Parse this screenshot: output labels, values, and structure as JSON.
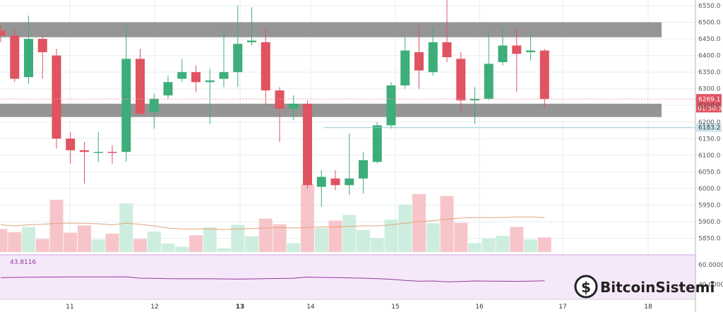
{
  "chart_data": {
    "type": "candlestick",
    "y_ticks": [
      5850,
      5900,
      5950,
      6000,
      6050,
      6100,
      6150,
      6200,
      6250,
      6300,
      6350,
      6400,
      6450,
      6500,
      6550
    ],
    "ylim": [
      5815,
      6575
    ],
    "x_ticks": [
      {
        "label": "11",
        "bold": false
      },
      {
        "label": "12",
        "bold": false
      },
      {
        "label": "13",
        "bold": true
      },
      {
        "label": "14",
        "bold": false
      },
      {
        "label": "15",
        "bold": false
      },
      {
        "label": "16",
        "bold": false
      },
      {
        "label": "17",
        "bold": false
      },
      {
        "label": "18",
        "bold": false
      }
    ],
    "candles": [
      {
        "o": 6475,
        "h": 6490,
        "l": 6440,
        "c": 6460
      },
      {
        "o": 6460,
        "h": 6480,
        "l": 6320,
        "c": 6330
      },
      {
        "o": 6335,
        "h": 6520,
        "l": 6315,
        "c": 6450
      },
      {
        "o": 6450,
        "h": 6460,
        "l": 6330,
        "c": 6410
      },
      {
        "o": 6400,
        "h": 6420,
        "l": 6120,
        "c": 6150
      },
      {
        "o": 6150,
        "h": 6170,
        "l": 6075,
        "c": 6115
      },
      {
        "o": 6115,
        "h": 6140,
        "l": 6015,
        "c": 6110
      },
      {
        "o": 6108,
        "h": 6170,
        "l": 6080,
        "c": 6110
      },
      {
        "o": 6110,
        "h": 6130,
        "l": 6075,
        "c": 6108
      },
      {
        "o": 6110,
        "h": 6490,
        "l": 6080,
        "c": 6390
      },
      {
        "o": 6390,
        "h": 6420,
        "l": 6220,
        "c": 6225
      },
      {
        "o": 6230,
        "h": 6285,
        "l": 6180,
        "c": 6270
      },
      {
        "o": 6280,
        "h": 6340,
        "l": 6270,
        "c": 6320
      },
      {
        "o": 6330,
        "h": 6390,
        "l": 6320,
        "c": 6350
      },
      {
        "o": 6350,
        "h": 6370,
        "l": 6290,
        "c": 6320
      },
      {
        "o": 6320,
        "h": 6360,
        "l": 6195,
        "c": 6325
      },
      {
        "o": 6330,
        "h": 6480,
        "l": 6305,
        "c": 6350
      },
      {
        "o": 6350,
        "h": 6550,
        "l": 6305,
        "c": 6435
      },
      {
        "o": 6440,
        "h": 6545,
        "l": 6430,
        "c": 6445
      },
      {
        "o": 6440,
        "h": 6485,
        "l": 6250,
        "c": 6295
      },
      {
        "o": 6295,
        "h": 6305,
        "l": 6140,
        "c": 6240
      },
      {
        "o": 6240,
        "h": 6280,
        "l": 6205,
        "c": 6255
      },
      {
        "o": 6255,
        "h": 6265,
        "l": 6000,
        "c": 6010
      },
      {
        "o": 6005,
        "h": 6055,
        "l": 5945,
        "c": 6035
      },
      {
        "o": 6030,
        "h": 6055,
        "l": 5995,
        "c": 6010
      },
      {
        "o": 6010,
        "h": 6165,
        "l": 5980,
        "c": 6030
      },
      {
        "o": 6030,
        "h": 6110,
        "l": 5985,
        "c": 6085
      },
      {
        "o": 6080,
        "h": 6200,
        "l": 6075,
        "c": 6190
      },
      {
        "o": 6190,
        "h": 6320,
        "l": 6180,
        "c": 6310
      },
      {
        "o": 6310,
        "h": 6455,
        "l": 6300,
        "c": 6415
      },
      {
        "o": 6410,
        "h": 6490,
        "l": 6300,
        "c": 6355
      },
      {
        "o": 6350,
        "h": 6485,
        "l": 6340,
        "c": 6440
      },
      {
        "o": 6440,
        "h": 6575,
        "l": 6380,
        "c": 6395
      },
      {
        "o": 6390,
        "h": 6410,
        "l": 6230,
        "c": 6265
      },
      {
        "o": 6265,
        "h": 6305,
        "l": 6195,
        "c": 6270
      },
      {
        "o": 6270,
        "h": 6475,
        "l": 6265,
        "c": 6375
      },
      {
        "o": 6380,
        "h": 6485,
        "l": 6370,
        "c": 6430
      },
      {
        "o": 6430,
        "h": 6480,
        "l": 6290,
        "c": 6405
      },
      {
        "o": 6410,
        "h": 6465,
        "l": 6385,
        "c": 6415
      },
      {
        "o": 6415,
        "h": 6420,
        "l": 6240,
        "c": 6269
      }
    ],
    "volume_ratio": [
      0.44,
      0.38,
      0.48,
      0.25,
      1.0,
      0.37,
      0.51,
      0.24,
      0.35,
      0.93,
      0.25,
      0.39,
      0.16,
      0.1,
      0.32,
      0.47,
      0.07,
      0.52,
      0.3,
      0.64,
      0.53,
      0.17,
      1.3,
      0.46,
      0.6,
      0.71,
      0.42,
      0.27,
      0.62,
      0.91,
      1.11,
      0.55,
      1.07,
      0.56,
      0.17,
      0.26,
      0.31,
      0.48,
      0.24,
      0.28
    ],
    "volume_ma_ratio": [
      0.52,
      0.5,
      0.52,
      0.53,
      0.55,
      0.55,
      0.55,
      0.54,
      0.52,
      0.55,
      0.53,
      0.5,
      0.46,
      0.44,
      0.44,
      0.44,
      0.43,
      0.44,
      0.45,
      0.46,
      0.47,
      0.46,
      0.47,
      0.48,
      0.48,
      0.49,
      0.5,
      0.5,
      0.52,
      0.55,
      0.58,
      0.6,
      0.63,
      0.65,
      0.66,
      0.66,
      0.66,
      0.67,
      0.67,
      0.66
    ],
    "rsi_level": [
      0.58,
      0.6,
      0.61,
      0.62,
      0.62,
      0.63,
      0.63,
      0.63,
      0.63,
      0.64,
      0.55,
      0.54,
      0.52,
      0.51,
      0.51,
      0.51,
      0.5,
      0.49,
      0.5,
      0.52,
      0.53,
      0.55,
      0.62,
      0.6,
      0.59,
      0.57,
      0.55,
      0.52,
      0.48,
      0.4,
      0.35,
      0.37,
      0.31,
      0.33,
      0.37,
      0.36,
      0.35,
      0.34,
      0.36,
      0.38
    ],
    "rsi_value": "43.8116",
    "rsi_ticks": [
      "60.0000",
      "40.0000"
    ],
    "zones": [
      [
        6455,
        6500
      ],
      [
        6215,
        6255
      ]
    ],
    "current_price": "6269.1",
    "countdown": "01:50:57",
    "level_price": 6183.2,
    "level_label": "6183.2",
    "colors": {
      "bull": "#3dad7a",
      "bear": "#e05360",
      "bull_vol": "#cdeede",
      "bear_vol": "#f7c5c9",
      "zone": "#8f8f8f",
      "rsi_bg": "#f6e8fb",
      "rsi_line": "#8e3c9c",
      "ma_line": "#e0a37a",
      "level": "#8fc8d6",
      "grid": "#e7eef2"
    }
  },
  "logo": {
    "text": "BitcoinSistemi",
    "symbol": "$"
  }
}
